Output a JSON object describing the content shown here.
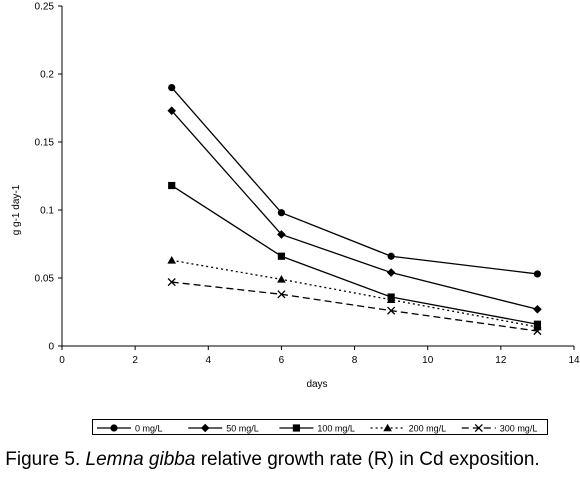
{
  "chart_data": {
    "type": "line",
    "title": "",
    "xlabel": "days",
    "ylabel": "g g-1 day-1",
    "xlim": [
      0,
      14
    ],
    "ylim": [
      0,
      0.25
    ],
    "x_ticks": [
      "0",
      "2",
      "4",
      "6",
      "8",
      "10",
      "12",
      "14"
    ],
    "y_ticks": [
      "0",
      "0.05",
      "0.1",
      "0.15",
      "0.2",
      "0.25"
    ],
    "grid": false,
    "legend_position": "bottom",
    "series": [
      {
        "name": "0 mg/L",
        "marker": "circle",
        "line": "solid",
        "x": [
          3,
          6,
          9,
          13
        ],
        "y": [
          0.19,
          0.098,
          0.066,
          0.053
        ]
      },
      {
        "name": "50 mg/L",
        "marker": "diamond",
        "line": "solid",
        "x": [
          3,
          6,
          9,
          13
        ],
        "y": [
          0.173,
          0.082,
          0.054,
          0.027
        ]
      },
      {
        "name": "100 mg/L",
        "marker": "square",
        "line": "solid",
        "x": [
          3,
          6,
          9,
          13
        ],
        "y": [
          0.118,
          0.066,
          0.036,
          0.016
        ]
      },
      {
        "name": "200 mg/L",
        "marker": "triangle",
        "line": "dotted",
        "x": [
          3,
          6,
          9,
          13
        ],
        "y": [
          0.063,
          0.049,
          0.034,
          0.014
        ]
      },
      {
        "name": "300 mg/L",
        "marker": "x",
        "line": "dashed",
        "x": [
          3,
          6,
          9,
          13
        ],
        "y": [
          0.047,
          0.038,
          0.026,
          0.011
        ]
      }
    ]
  },
  "caption": {
    "prefix": "Figure 5. ",
    "species": "Lemna gibba",
    "suffix": " relative growth rate (R) in Cd exposition."
  }
}
